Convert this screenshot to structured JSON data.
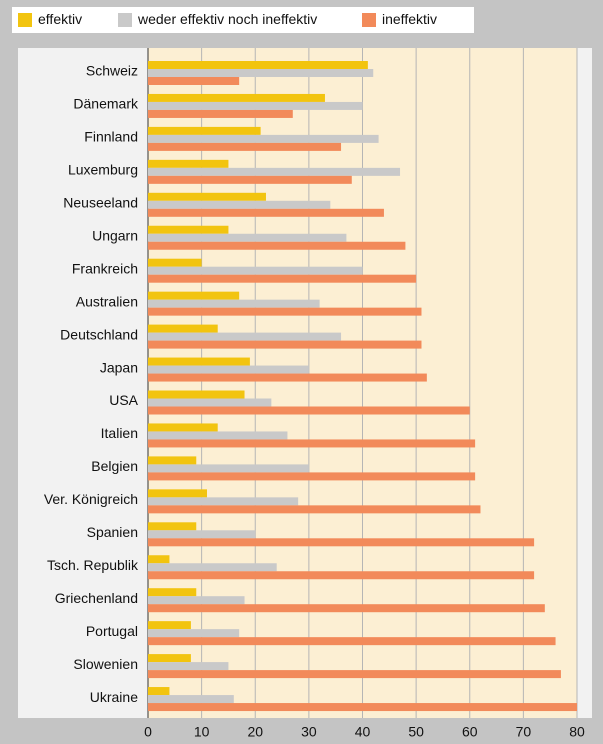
{
  "chart_data": {
    "type": "bar",
    "orientation": "horizontal",
    "categories": [
      "Schweiz",
      "Dänemark",
      "Finnland",
      "Luxemburg",
      "Neuseeland",
      "Ungarn",
      "Frankreich",
      "Australien",
      "Deutschland",
      "Japan",
      "USA",
      "Italien",
      "Belgien",
      "Ver. Königreich",
      "Spanien",
      "Tsch. Republik",
      "Griechenland",
      "Portugal",
      "Slowenien",
      "Ukraine"
    ],
    "series": [
      {
        "name": "effektiv",
        "color": "#f2c40f",
        "values": [
          41,
          33,
          21,
          15,
          22,
          15,
          10,
          17,
          13,
          19,
          18,
          13,
          9,
          11,
          9,
          4,
          9,
          8,
          8,
          4
        ]
      },
      {
        "name": "weder effektiv noch ineffektiv",
        "color": "#c9c9c9",
        "values": [
          42,
          40,
          43,
          47,
          34,
          37,
          40,
          32,
          36,
          30,
          23,
          26,
          30,
          28,
          20,
          24,
          18,
          17,
          15,
          16
        ]
      },
      {
        "name": "ineffektiv",
        "color": "#f28a5a",
        "values": [
          17,
          27,
          36,
          38,
          44,
          48,
          50,
          51,
          51,
          52,
          60,
          61,
          61,
          62,
          72,
          72,
          74,
          76,
          77,
          80
        ]
      }
    ],
    "xlim": [
      0,
      80
    ],
    "xticks": [
      0,
      10,
      20,
      30,
      40,
      50,
      60,
      70,
      80
    ],
    "grid": true
  }
}
